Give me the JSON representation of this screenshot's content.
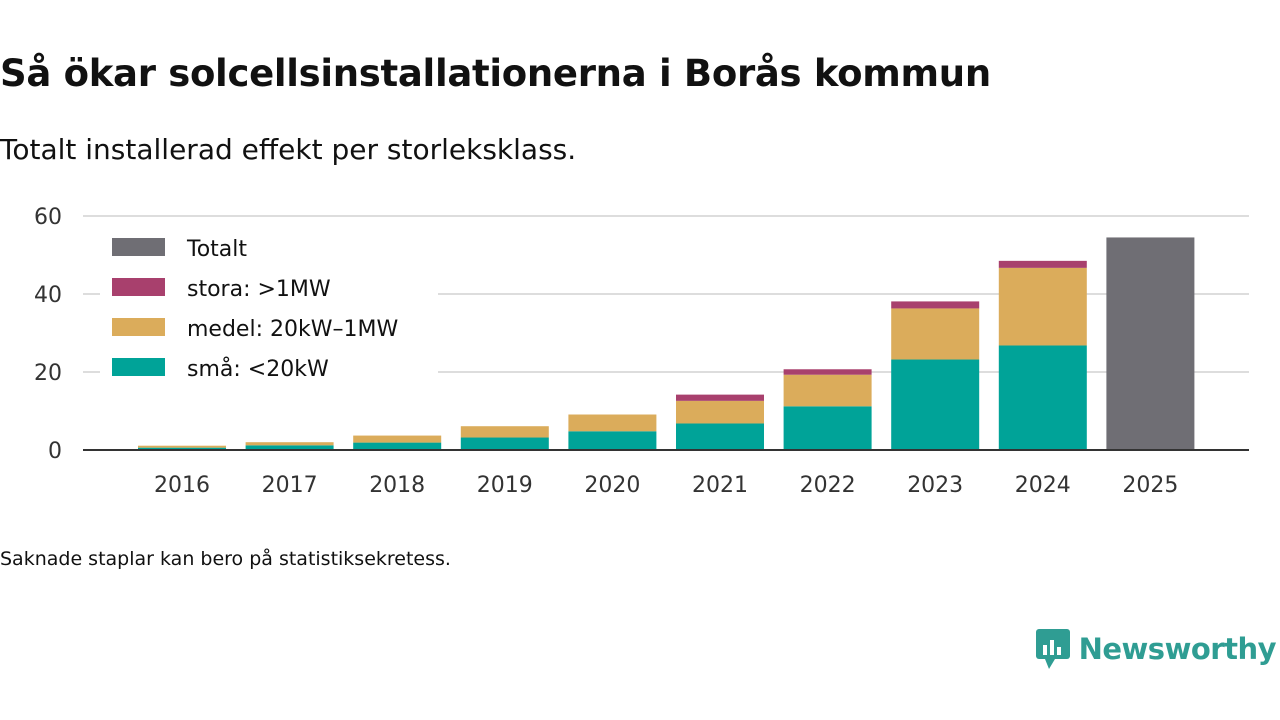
{
  "title": "Så ökar solcellsinstallationerna i Borås kommun",
  "subtitle": "Totalt installerad effekt per storleksklass.",
  "note": "Saknade staplar kan bero på statistiksekretess.",
  "brand": {
    "name": "Newsworthy",
    "logo_icon": "newsworthy-logo-icon",
    "color": "#2f9d93"
  },
  "chart_data": {
    "type": "bar",
    "stacked": true,
    "title": "",
    "xlabel": "",
    "ylabel": "",
    "ylim": [
      0,
      60
    ],
    "yticks": [
      0,
      20,
      40,
      60
    ],
    "ytick_labels": [
      "0",
      "20",
      "40",
      "60"
    ],
    "grid": true,
    "legend_position": "top-left",
    "categories": [
      "2016",
      "2017",
      "2018",
      "2019",
      "2020",
      "2021",
      "2022",
      "2023",
      "2024",
      "2025"
    ],
    "series": [
      {
        "name": "små: <20kW",
        "color": "#00a398",
        "values": [
          0.6,
          1.2,
          1.9,
          3.2,
          4.8,
          6.8,
          11.2,
          23.2,
          26.8,
          null
        ]
      },
      {
        "name": "medel: 20kW–1MW",
        "color": "#dbac5b",
        "values": [
          0.5,
          0.8,
          1.8,
          2.9,
          4.3,
          5.8,
          8.1,
          13.1,
          19.9,
          null
        ]
      },
      {
        "name": "stora: >1MW",
        "color": "#a8406d",
        "values": [
          null,
          null,
          null,
          null,
          null,
          1.6,
          1.4,
          1.8,
          1.8,
          null
        ]
      },
      {
        "name": "Totalt",
        "color": "#6f6e74",
        "values": [
          null,
          null,
          null,
          null,
          null,
          null,
          null,
          null,
          null,
          54.5
        ]
      }
    ],
    "legend": [
      {
        "name": "Totalt",
        "color": "#6f6e74"
      },
      {
        "name": "stora: >1MW",
        "color": "#a8406d"
      },
      {
        "name": "medel: 20kW–1MW",
        "color": "#dbac5b"
      },
      {
        "name": "små: <20kW",
        "color": "#00a398"
      }
    ]
  }
}
